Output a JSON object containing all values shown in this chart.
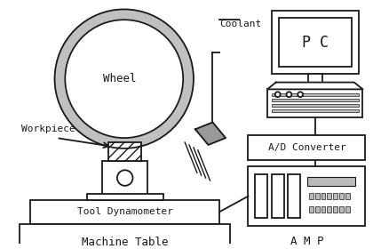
{
  "bg_color": "#ffffff",
  "line_color": "#1a1a1a",
  "gray_rim": "#aaaaaa",
  "labels": {
    "wheel": "Wheel",
    "workpiece": "Workpiece",
    "coolant": "Coolant",
    "tool_dyn": "Tool Dynamometer",
    "machine_table": "Machine Table",
    "pc": "P C",
    "ad_converter": "A/D Converter",
    "amp": "A M P"
  },
  "figsize": [
    4.29,
    2.8
  ],
  "dpi": 100
}
